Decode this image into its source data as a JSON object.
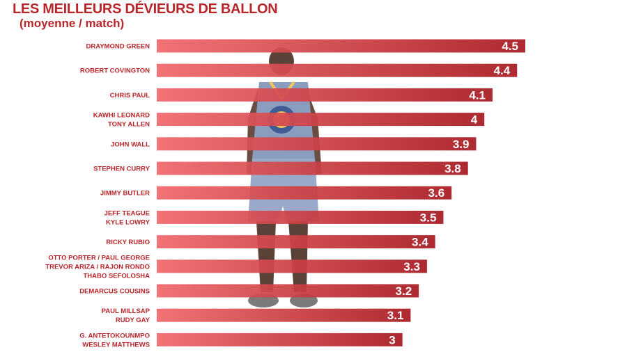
{
  "chart_data": {
    "type": "bar",
    "orientation": "horizontal",
    "title": "LES MEILLEURS DÉVIEURS DE BALLON",
    "subtitle": "(moyenne / match)",
    "categories": [
      [
        "DRAYMOND GREEN"
      ],
      [
        "ROBERT COVINGTON"
      ],
      [
        "CHRIS PAUL"
      ],
      [
        "KAWHI LEONARD",
        "TONY ALLEN"
      ],
      [
        "JOHN WALL"
      ],
      [
        "STEPHEN CURRY"
      ],
      [
        "JIMMY BUTLER"
      ],
      [
        "JEFF TEAGUE",
        "KYLE LOWRY"
      ],
      [
        "RICKY RUBIO"
      ],
      [
        "OTTO PORTER / PAUL GEORGE",
        "TREVOR ARIZA / RAJON RONDO",
        "THABO SEFOLOSHA"
      ],
      [
        "DEMARCUS COUSINS"
      ],
      [
        "PAUL MILLSAP",
        "RUDY GAY"
      ],
      [
        "G. ANTETOKOUNMPO",
        "WESLEY MATTHEWS"
      ]
    ],
    "values": [
      4.5,
      4.4,
      4.1,
      4,
      3.9,
      3.8,
      3.6,
      3.5,
      3.4,
      3.3,
      3.2,
      3.1,
      3
    ],
    "value_labels": [
      "4.5",
      "4.4",
      "4.1",
      "4",
      "3.9",
      "3.8",
      "3.6",
      "3.5",
      "3.4",
      "3.3",
      "3.2",
      "3.1",
      "3"
    ],
    "xlim": [
      0,
      4.5
    ],
    "grid": false,
    "legend": "none",
    "colors": {
      "bar_start": "#f0686c",
      "bar_end": "#a81a22",
      "label": "#b8262b",
      "value_text": "#ffffff"
    }
  }
}
